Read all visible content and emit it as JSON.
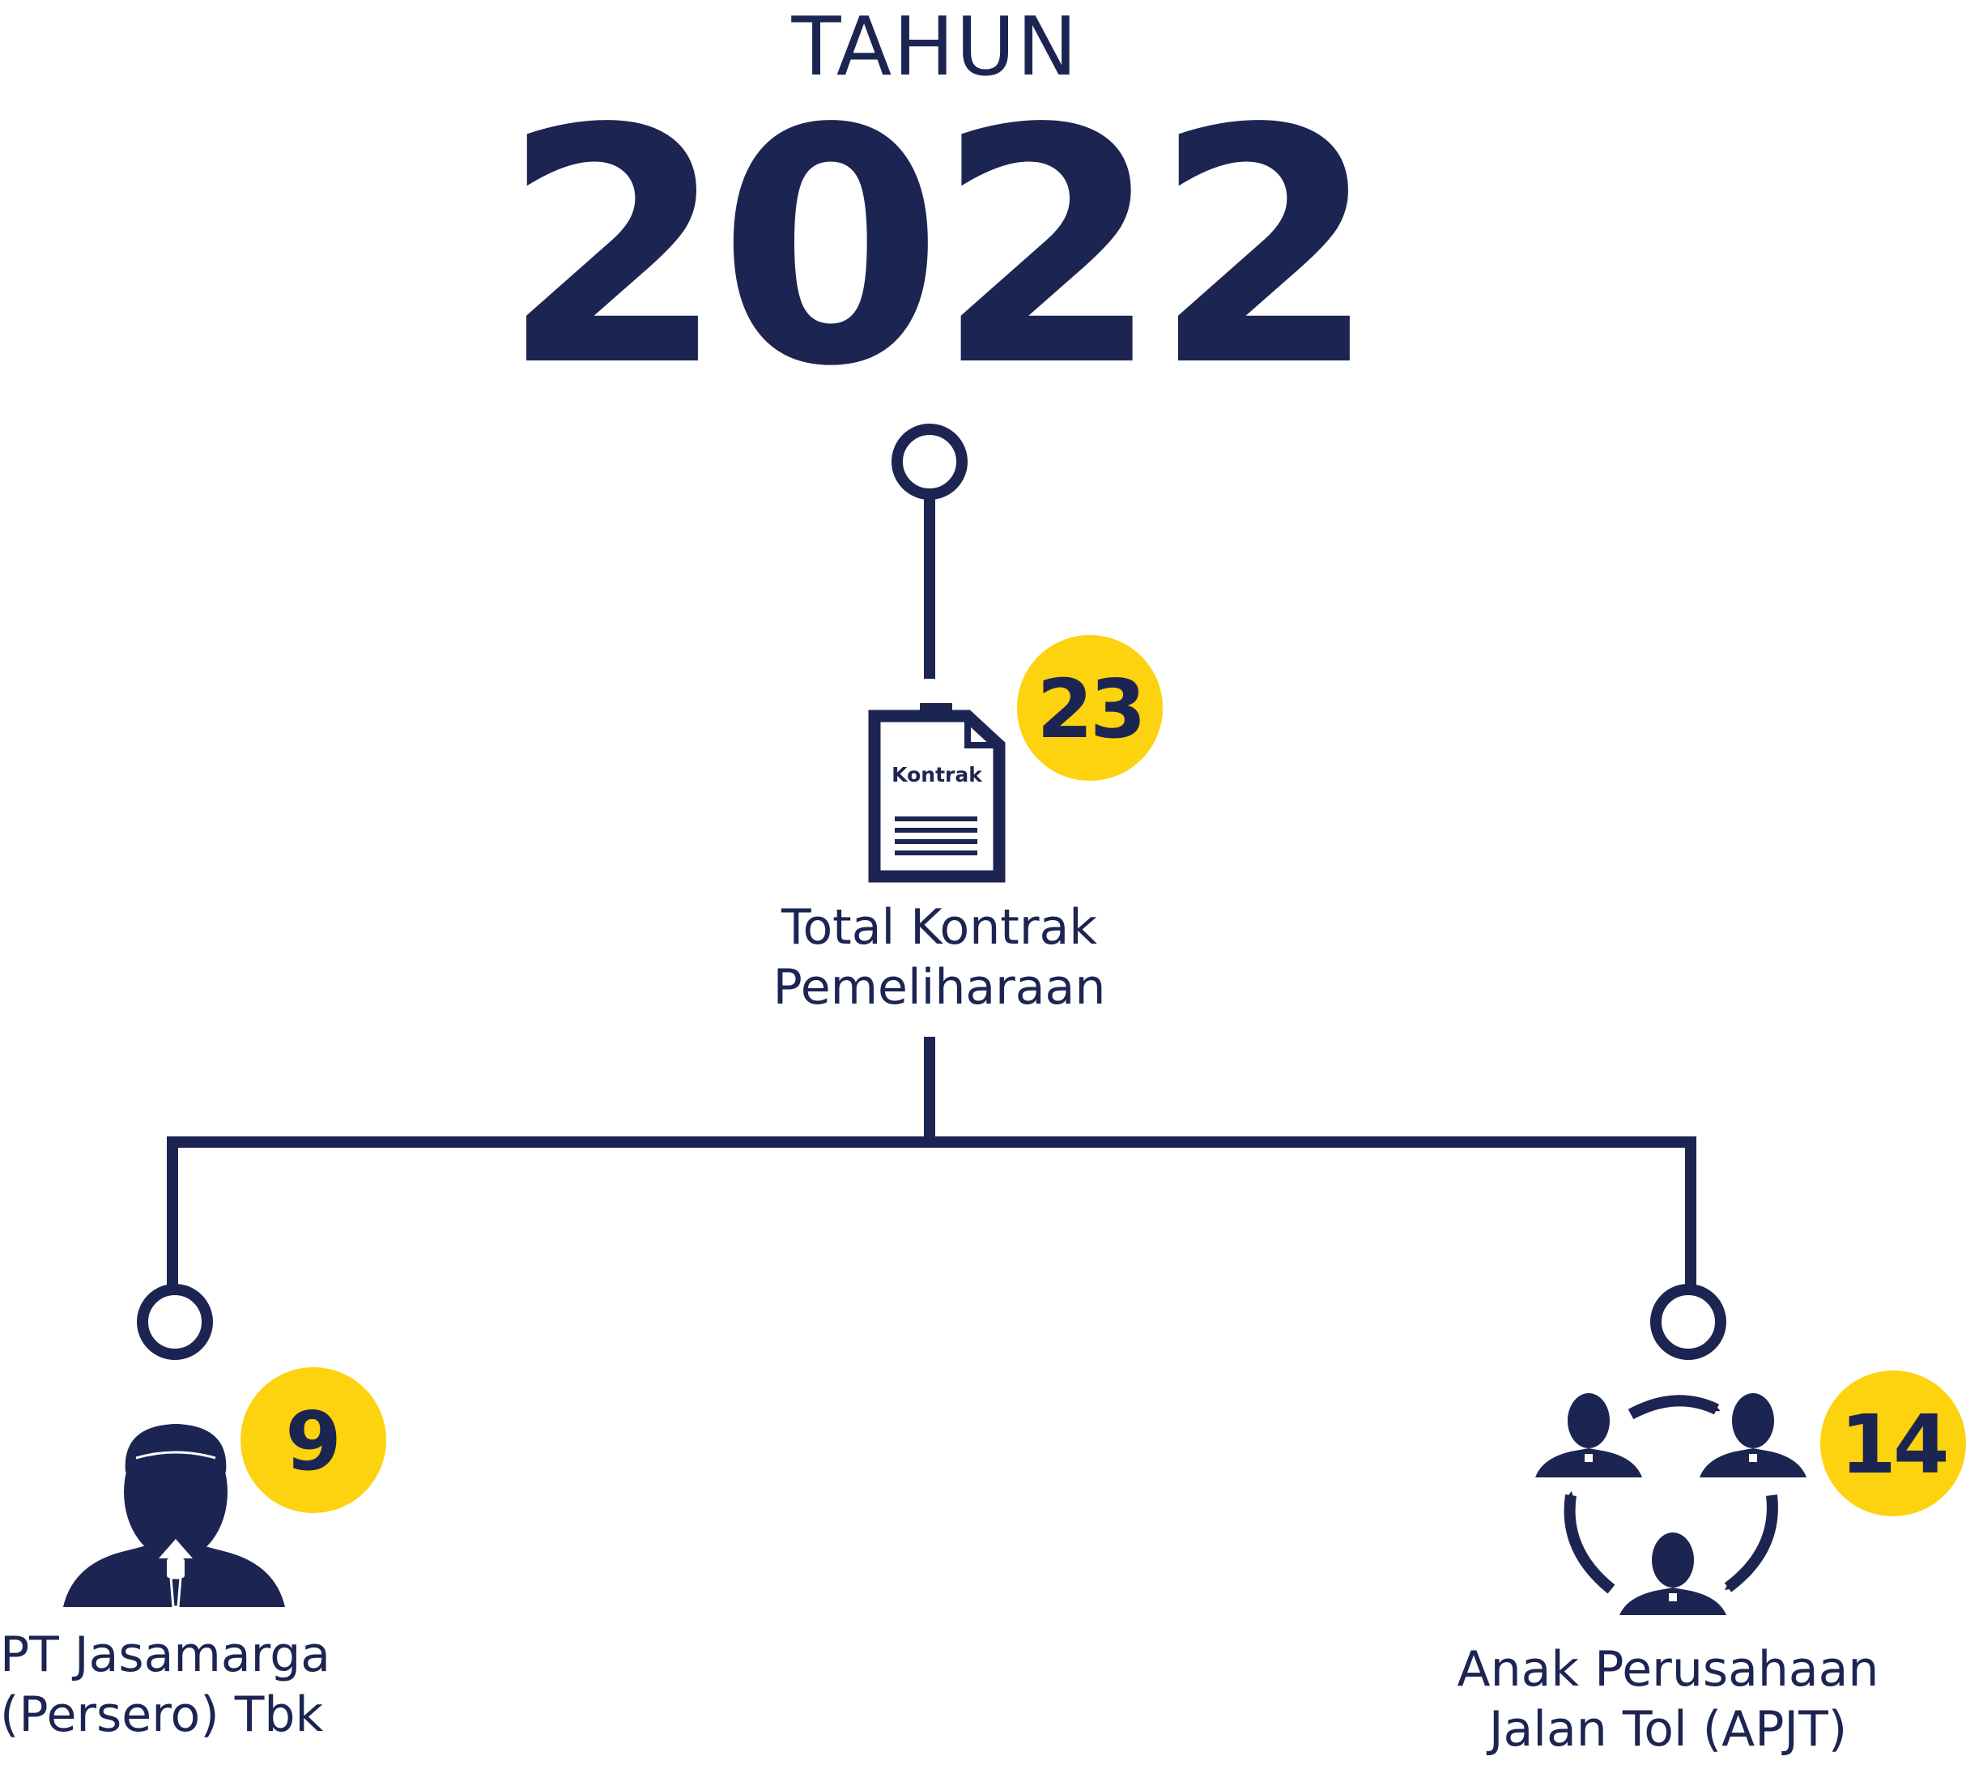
{
  "header": {
    "title_small": "TAHUN",
    "year": "2022"
  },
  "colors": {
    "navy": "#1c2552",
    "yellow": "#fdd20e",
    "white": "#ffffff"
  },
  "root_node": {
    "icon": "contract-document-icon",
    "document_label": "Kontrak",
    "count": "23",
    "label": "Total Kontrak\nPemeliharaan"
  },
  "children": [
    {
      "icon": "person-icon",
      "count": "9",
      "label": "PT Jasamarga\n(Persero) Tbk"
    },
    {
      "icon": "group-cycle-icon",
      "count": "14",
      "label": "Anak Perusahaan\nJalan Tol (APJT)"
    }
  ]
}
